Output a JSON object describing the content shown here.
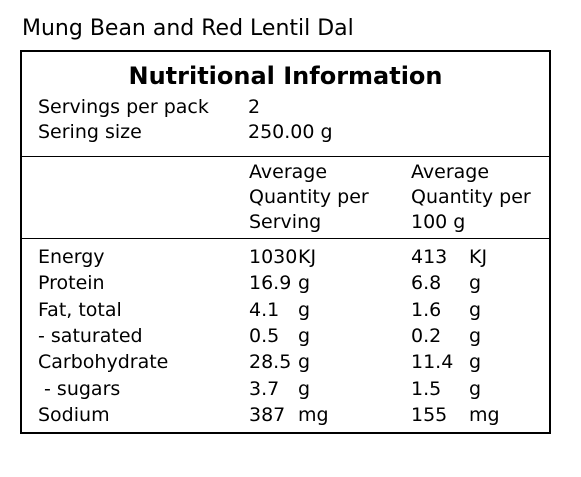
{
  "product_name": "Mung Bean and Red Lentil Dal",
  "panel": {
    "title": "Nutritional Information",
    "servings_per_pack_label": "Servings per pack",
    "servings_per_pack_value": "2",
    "serving_size_label": "Sering size",
    "serving_size_value": "250.00 g",
    "col_per_serving": [
      "Average",
      "Quantity per",
      "Serving"
    ],
    "col_per_100g": [
      "Average",
      "Quantity per",
      "100 g"
    ]
  },
  "nutrients": [
    {
      "name": "Energy",
      "per_serving": "1030",
      "per_serving_unit": "KJ",
      "per_100g": "413",
      "per_100g_unit": "KJ"
    },
    {
      "name": "Protein",
      "per_serving": "16.9",
      "per_serving_unit": "g",
      "per_100g": "6.8",
      "per_100g_unit": "g"
    },
    {
      "name": "Fat, total",
      "per_serving": "4.1",
      "per_serving_unit": "g",
      "per_100g": "1.6",
      "per_100g_unit": "g"
    },
    {
      "name": "- saturated",
      "per_serving": "0.5",
      "per_serving_unit": "g",
      "per_100g": "0.2",
      "per_100g_unit": "g"
    },
    {
      "name": "Carbohydrate",
      "per_serving": "28.5",
      "per_serving_unit": "g",
      "per_100g": "11.4",
      "per_100g_unit": "g"
    },
    {
      "name": " - sugars",
      "per_serving": "3.7",
      "per_serving_unit": "g",
      "per_100g": "1.5",
      "per_100g_unit": "g"
    },
    {
      "name": "Sodium",
      "per_serving": "387",
      "per_serving_unit": "mg",
      "per_100g": "155",
      "per_100g_unit": "mg"
    }
  ]
}
